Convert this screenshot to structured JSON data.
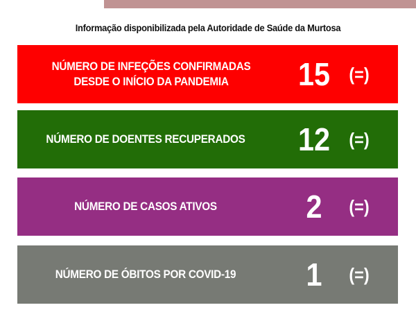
{
  "header": {
    "subtitle": "Informação disponibilizada pela Autoridade de Saúde da Murtosa"
  },
  "colors": {
    "confirmed": "#fe0000",
    "recovered": "#226d07",
    "active": "#952e83",
    "deaths": "#777a74",
    "top_bar": "#c09393"
  },
  "cards": [
    {
      "label": "NÚMERO DE INFEÇÕES CONFIRMADAS DESDE O INÍCIO DA PANDEMIA",
      "value": "15",
      "trend": "(=)"
    },
    {
      "label": "NÚMERO DE DOENTES RECUPERADOS",
      "value": "12",
      "trend": "(=)"
    },
    {
      "label": "NÚMERO DE CASOS ATIVOS",
      "value": "2",
      "trend": "(=)"
    },
    {
      "label": "NÚMERO DE ÓBITOS POR COVID-19",
      "value": "1",
      "trend": "(=)"
    }
  ]
}
